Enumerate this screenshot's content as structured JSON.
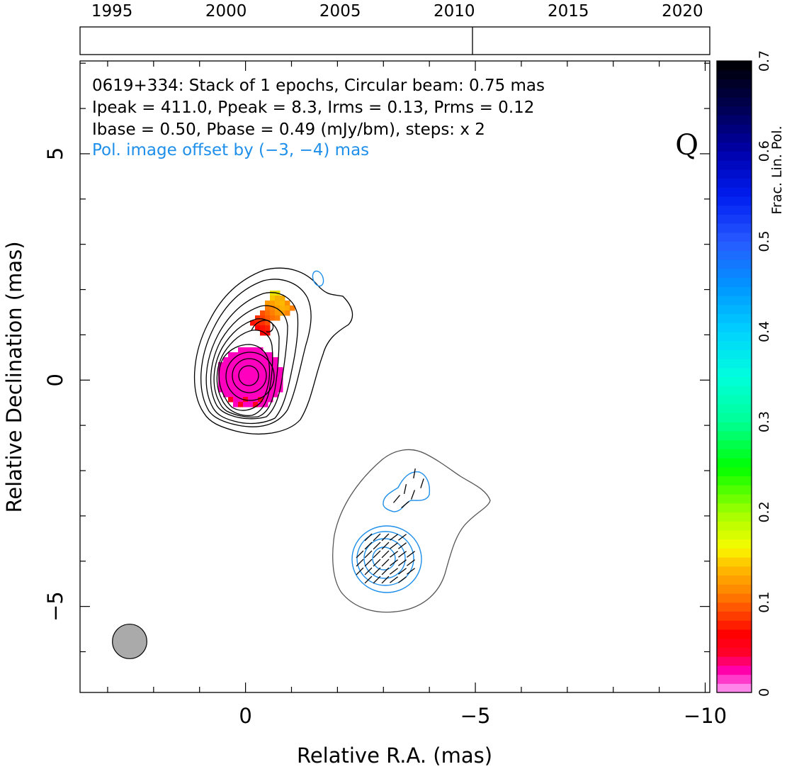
{
  "chart_data": {
    "type": "heatmap",
    "description_lines": [
      "0619+334: Stack of 1 epochs, Circular beam: 0.75 mas",
      "Ipeak = 411.0, Ppeak = 8.3, Irms = 0.13, Prms = 0.12",
      "Ibase = 0.50, Pbase = 0.49 (mJy/bm), steps: x 2"
    ],
    "offset_note": "Pol. image offset by (−3, −4) mas",
    "band_label": "Q",
    "xlabel": "Relative R.A. (mas)",
    "ylabel": "Relative Declination (mas)",
    "x_ticks": [
      {
        "value": 0,
        "label": "0"
      },
      {
        "value": -5,
        "label": "−5"
      },
      {
        "value": -10,
        "label": "−10"
      }
    ],
    "y_ticks": [
      {
        "value": 5,
        "label": "5"
      },
      {
        "value": 0,
        "label": "0"
      },
      {
        "value": -5,
        "label": "−5"
      }
    ],
    "xlim": [
      3.6,
      -10.1
    ],
    "ylim": [
      -6.9,
      7.05
    ],
    "beam_diameter_mas": 0.75,
    "timeline": {
      "years": [
        "1995",
        "2000",
        "2005",
        "2010",
        "2015",
        "2020"
      ],
      "range": [
        1993.6,
        2021.2
      ],
      "epochs": [
        2010.8
      ]
    },
    "colorbar": {
      "label": "Frac. Lin. Pol.",
      "range": [
        0,
        0.7
      ],
      "ticks": [
        "0",
        "0.1",
        "0.2",
        "0.3",
        "0.4",
        "0.5",
        "0.6",
        "0.7"
      ]
    },
    "colors": {
      "total_intensity_contour": "#000000",
      "lowest_total_intensity_contour": "#555555",
      "polarized_intensity_contour": "#1e8fea",
      "evpa_sticks": "#000000",
      "beam_fill": "#aaaaaa"
    }
  }
}
